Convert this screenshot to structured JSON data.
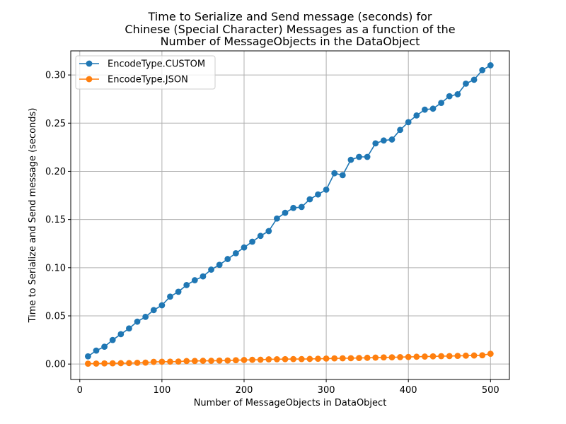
{
  "chart_data": {
    "type": "line",
    "title": [
      "Time to Serialize and Send message (seconds) for",
      "Chinese (Special Character) Messages as a function of the",
      "Number of MessageObjects in the DataObject"
    ],
    "xlabel": "Number of MessageObjects in DataObject",
    "ylabel": "Time to Serialize and Send message (seconds)",
    "xlim": [
      -11,
      523
    ],
    "ylim": [
      -0.016,
      0.325
    ],
    "xticks": [
      0,
      100,
      200,
      300,
      400,
      500
    ],
    "xtick_labels": [
      "0",
      "100",
      "200",
      "300",
      "400",
      "500"
    ],
    "yticks": [
      0.0,
      0.05,
      0.1,
      0.15,
      0.2,
      0.25,
      0.3
    ],
    "ytick_labels": [
      "0.00",
      "0.05",
      "0.10",
      "0.15",
      "0.20",
      "0.25",
      "0.30"
    ],
    "grid": true,
    "legend_position": "top-left",
    "x": [
      10,
      20,
      30,
      40,
      50,
      60,
      70,
      80,
      90,
      100,
      110,
      120,
      130,
      140,
      150,
      160,
      170,
      180,
      190,
      200,
      210,
      220,
      230,
      240,
      250,
      260,
      270,
      280,
      290,
      300,
      310,
      320,
      330,
      340,
      350,
      360,
      370,
      380,
      390,
      400,
      410,
      420,
      430,
      440,
      450,
      460,
      470,
      480,
      490,
      500
    ],
    "series": [
      {
        "name": "EncodeType.CUSTOM",
        "color": "#1f77b4",
        "values": [
          0.008,
          0.014,
          0.018,
          0.025,
          0.031,
          0.037,
          0.044,
          0.049,
          0.056,
          0.061,
          0.07,
          0.075,
          0.082,
          0.087,
          0.091,
          0.098,
          0.103,
          0.109,
          0.115,
          0.121,
          0.127,
          0.133,
          0.138,
          0.151,
          0.157,
          0.162,
          0.163,
          0.171,
          0.176,
          0.181,
          0.198,
          0.196,
          0.212,
          0.215,
          0.215,
          0.229,
          0.232,
          0.233,
          0.243,
          0.251,
          0.258,
          0.264,
          0.265,
          0.271,
          0.278,
          0.28,
          0.291,
          0.295,
          0.305,
          0.31
        ]
      },
      {
        "name": "EncodeType.JSON",
        "color": "#ff7f0e",
        "values": [
          0.0004,
          0.0005,
          0.0007,
          0.0008,
          0.0009,
          0.001,
          0.0013,
          0.0015,
          0.0023,
          0.0024,
          0.0025,
          0.0026,
          0.0031,
          0.0032,
          0.0034,
          0.0034,
          0.0036,
          0.0037,
          0.004,
          0.0042,
          0.0044,
          0.0045,
          0.0049,
          0.005,
          0.0051,
          0.0052,
          0.0052,
          0.0053,
          0.0055,
          0.0057,
          0.0059,
          0.006,
          0.0061,
          0.0063,
          0.0065,
          0.0067,
          0.0069,
          0.007,
          0.0072,
          0.0074,
          0.0076,
          0.0078,
          0.008,
          0.0082,
          0.0083,
          0.0085,
          0.0087,
          0.0089,
          0.0091,
          0.0107
        ]
      }
    ]
  }
}
